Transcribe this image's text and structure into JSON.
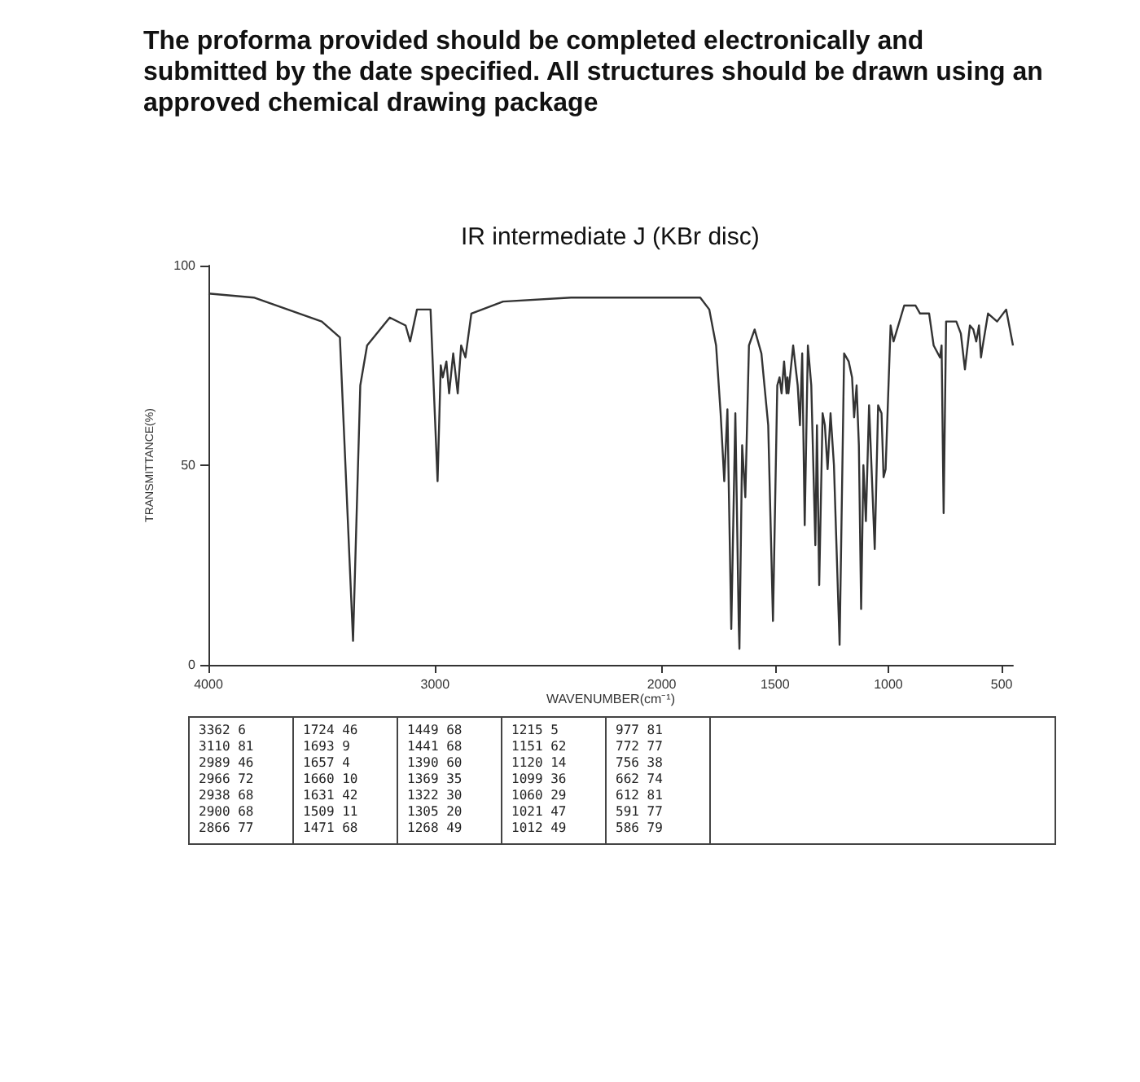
{
  "chart_data": {
    "type": "line",
    "title": "IR intermediate J (KBr disc)",
    "subtitle": "The proforma provided should be completed electronically and submitted by the date specified. All structures should be drawn using an approved chemical drawing package",
    "xlabel": "WAVENUMBER(cm⁻¹)",
    "ylabel": "TRANSMITTANCE(%)",
    "x": [
      4000,
      3800,
      3500,
      3420,
      3362,
      3330,
      3300,
      3200,
      3130,
      3110,
      3080,
      3020,
      2989,
      2975,
      2966,
      2950,
      2938,
      2920,
      2900,
      2885,
      2866,
      2840,
      2700,
      2400,
      2000,
      1830,
      1790,
      1760,
      1740,
      1724,
      1710,
      1693,
      1675,
      1660,
      1657,
      1645,
      1631,
      1615,
      1590,
      1560,
      1530,
      1509,
      1490,
      1480,
      1471,
      1460,
      1449,
      1445,
      1441,
      1420,
      1400,
      1390,
      1380,
      1369,
      1355,
      1340,
      1322,
      1315,
      1305,
      1290,
      1280,
      1268,
      1255,
      1240,
      1215,
      1195,
      1175,
      1160,
      1151,
      1140,
      1130,
      1120,
      1110,
      1099,
      1085,
      1060,
      1045,
      1030,
      1021,
      1012,
      990,
      977,
      930,
      880,
      860,
      820,
      800,
      772,
      765,
      756,
      745,
      700,
      680,
      662,
      640,
      625,
      612,
      600,
      591,
      586,
      560,
      520,
      480,
      450
    ],
    "series": [
      {
        "color": "#333333",
        "values": [
          93,
          92,
          86,
          82,
          6,
          70,
          80,
          87,
          85,
          81,
          89,
          89,
          46,
          75,
          72,
          76,
          68,
          78,
          68,
          80,
          77,
          88,
          91,
          92,
          92,
          92,
          89,
          80,
          63,
          46,
          64,
          9,
          63,
          10,
          4,
          55,
          42,
          80,
          84,
          78,
          60,
          11,
          70,
          72,
          68,
          76,
          68,
          72,
          68,
          80,
          70,
          60,
          78,
          35,
          80,
          70,
          30,
          60,
          20,
          63,
          60,
          49,
          63,
          50,
          5,
          78,
          76,
          72,
          62,
          70,
          55,
          14,
          50,
          36,
          65,
          29,
          65,
          63,
          47,
          49,
          85,
          81,
          90,
          90,
          88,
          88,
          80,
          77,
          80,
          38,
          86,
          86,
          83,
          74,
          85,
          84,
          81,
          85,
          77,
          79,
          88,
          86,
          89,
          80
        ]
      }
    ],
    "xlim": [
      4000,
      450
    ],
    "xticks": [
      4000,
      3000,
      2000,
      1500,
      1000,
      500
    ],
    "ylim": [
      0,
      100
    ],
    "yticks": [
      0,
      50,
      100
    ],
    "grid": false,
    "marker": "none",
    "line_style": "solid",
    "annotations": [
      "3362 6",
      "3110 81",
      "2989 46",
      "2966 72",
      "2938 68",
      "2900 68",
      "2866 77",
      "1724 46",
      "1693 9",
      "1657 4",
      "1660 10",
      "1631 42",
      "1509 11",
      "1471 68",
      "1449 68",
      "1441 68",
      "1390 60",
      "1369 35",
      "1322 30",
      "1305 20",
      "1268 49",
      "1215 5",
      "1151 62",
      "1120 14",
      "1099 36",
      "1060 29",
      "1021 47",
      "1012 49",
      "977 81",
      "772 77",
      "756 38",
      "662 74",
      "612 81",
      "591 77",
      "586 79"
    ]
  }
}
